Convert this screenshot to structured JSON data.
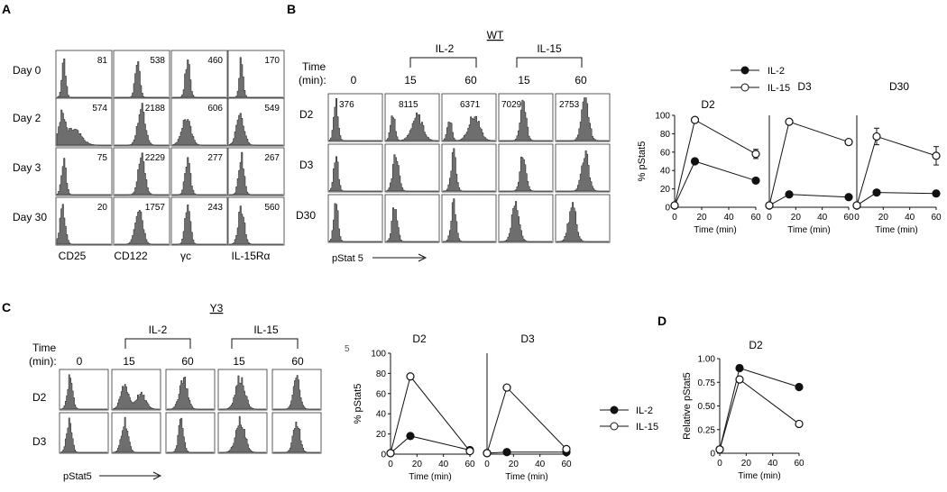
{
  "panels": {
    "A": {
      "letter": "A",
      "columns": [
        "CD25",
        "CD122",
        "γc",
        "IL-15Rα"
      ],
      "rows": [
        {
          "label": "Day 0",
          "values": [
            "81",
            "538",
            "460",
            "170"
          ]
        },
        {
          "label": "Day 2",
          "values": [
            "574",
            "2188",
            "606",
            "549"
          ]
        },
        {
          "label": "Day 3",
          "values": [
            "75",
            "2229",
            "277",
            "267"
          ]
        },
        {
          "label": "Day 30",
          "values": [
            "20",
            "1757",
            "243",
            "560"
          ]
        }
      ]
    },
    "B": {
      "letter": "B",
      "genotype": "WT",
      "time_label_1": "Time",
      "time_label_2": "(min):",
      "groups": [
        "IL-2",
        "IL-15"
      ],
      "times": [
        "0",
        "15",
        "60",
        "15",
        "60"
      ],
      "rows": [
        "D2",
        "D3",
        "D30"
      ],
      "d2_values": [
        "376",
        "8115",
        "6371",
        "7029",
        "2753"
      ],
      "axis_label": "pStat 5"
    },
    "C": {
      "letter": "C",
      "genotype": "Y3",
      "time_label_1": "Time",
      "time_label_2": "(min):",
      "groups": [
        "IL-2",
        "IL-15"
      ],
      "times": [
        "0",
        "15",
        "60",
        "15",
        "60"
      ],
      "rows": [
        "D2",
        "D3"
      ],
      "axis_label": "pStat5",
      "stray_char": "5"
    },
    "D": {
      "letter": "D"
    }
  },
  "legends": {
    "B": {
      "series": [
        "IL-2",
        "IL-15"
      ]
    },
    "C": {
      "series": [
        "IL-2",
        "IL-15"
      ]
    }
  },
  "chart_data": [
    {
      "type": "line",
      "panel": "B",
      "title": "D2",
      "xlabel": "Time (min)",
      "ylabel": "% pStat5",
      "xlim": [
        0,
        60
      ],
      "ylim": [
        0,
        100
      ],
      "xticks": [
        "0",
        "20",
        "40",
        "60"
      ],
      "yticks": [
        "0",
        "20",
        "40",
        "60",
        "80",
        "100"
      ],
      "x": [
        0,
        15,
        60
      ],
      "series": [
        {
          "name": "IL-2",
          "marker": "filled",
          "values": [
            2,
            50,
            29
          ],
          "errors": [
            0,
            3,
            0
          ]
        },
        {
          "name": "IL-15",
          "marker": "open",
          "values": [
            2,
            95,
            58
          ],
          "errors": [
            0,
            0,
            5
          ]
        }
      ]
    },
    {
      "type": "line",
      "panel": "B",
      "title": "D3",
      "xlabel": "Time (min)",
      "ylabel": "",
      "xlim": [
        0,
        60
      ],
      "ylim": [
        0,
        100
      ],
      "xticks": [
        "0",
        "20",
        "40",
        "60"
      ],
      "yticks": [],
      "x": [
        0,
        15,
        60
      ],
      "series": [
        {
          "name": "IL-2",
          "marker": "filled",
          "values": [
            2,
            14,
            11
          ],
          "errors": [
            0,
            0,
            0
          ]
        },
        {
          "name": "IL-15",
          "marker": "open",
          "values": [
            2,
            93,
            71
          ],
          "errors": [
            0,
            0,
            0
          ]
        }
      ]
    },
    {
      "type": "line",
      "panel": "B",
      "title": "D30",
      "xlabel": "Time (min)",
      "ylabel": "",
      "xlim": [
        0,
        60
      ],
      "ylim": [
        0,
        100
      ],
      "xticks": [
        "0",
        "20",
        "40",
        "60"
      ],
      "yticks": [],
      "x": [
        0,
        15,
        60
      ],
      "series": [
        {
          "name": "IL-2",
          "marker": "filled",
          "values": [
            2,
            16,
            15
          ],
          "errors": [
            0,
            0,
            0
          ]
        },
        {
          "name": "IL-15",
          "marker": "open",
          "values": [
            2,
            77,
            56
          ],
          "errors": [
            0,
            9,
            10
          ]
        }
      ]
    },
    {
      "type": "line",
      "panel": "C",
      "title": "D2",
      "xlabel": "Time (min)",
      "ylabel": "% pStat5",
      "xlim": [
        0,
        60
      ],
      "ylim": [
        0,
        100
      ],
      "xticks": [
        "0",
        "20",
        "40",
        "60"
      ],
      "yticks": [
        "0",
        "20",
        "40",
        "60",
        "80",
        "100"
      ],
      "x": [
        0,
        15,
        60
      ],
      "series": [
        {
          "name": "IL-2",
          "marker": "filled",
          "values": [
            1,
            18,
            4
          ],
          "errors": [
            0,
            0,
            0
          ]
        },
        {
          "name": "IL-15",
          "marker": "open",
          "values": [
            1,
            77,
            3
          ],
          "errors": [
            0,
            0,
            0
          ]
        }
      ]
    },
    {
      "type": "line",
      "panel": "C",
      "title": "D3",
      "xlabel": "Time (min)",
      "ylabel": "",
      "xlim": [
        0,
        60
      ],
      "ylim": [
        0,
        100
      ],
      "xticks": [
        "0",
        "20",
        "40",
        "60"
      ],
      "yticks": [],
      "x": [
        0,
        15,
        60
      ],
      "series": [
        {
          "name": "IL-2",
          "marker": "filled",
          "values": [
            1,
            2,
            2
          ],
          "errors": [
            0,
            0,
            0
          ]
        },
        {
          "name": "IL-15",
          "marker": "open",
          "values": [
            1,
            66,
            5
          ],
          "errors": [
            0,
            0,
            0
          ]
        }
      ]
    },
    {
      "type": "line",
      "panel": "D",
      "title": "D2",
      "xlabel": "Time (min)",
      "ylabel": "Relative pStat5",
      "xlim": [
        0,
        60
      ],
      "ylim": [
        0,
        1
      ],
      "xticks": [
        "0",
        "20",
        "40",
        "60"
      ],
      "yticks": [
        "0",
        "0.25",
        "0.50",
        "0.75",
        "1.00"
      ],
      "x": [
        0,
        15,
        60
      ],
      "series": [
        {
          "name": "IL-2",
          "marker": "filled",
          "values": [
            0.04,
            0.9,
            0.7
          ],
          "errors": [
            0,
            0.03,
            0
          ]
        },
        {
          "name": "IL-15",
          "marker": "open",
          "values": [
            0.04,
            0.78,
            0.31
          ],
          "errors": [
            0,
            0.03,
            0
          ]
        }
      ]
    }
  ]
}
